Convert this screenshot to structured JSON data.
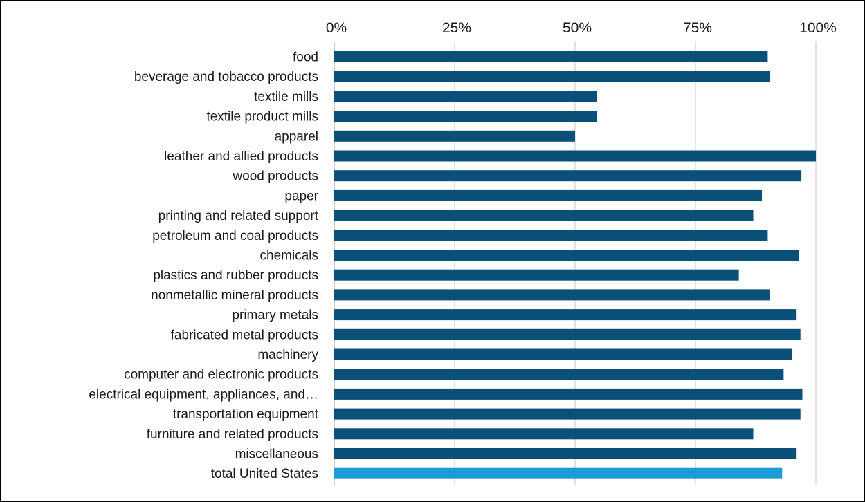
{
  "chart_data": {
    "type": "bar",
    "orientation": "horizontal",
    "title": "",
    "xlabel": "",
    "ylabel": "",
    "xlim": [
      0,
      100
    ],
    "x_ticks": [
      0,
      25,
      50,
      75,
      100
    ],
    "x_tick_labels": [
      "0%",
      "25%",
      "50%",
      "75%",
      "100%"
    ],
    "x_axis_position": "top",
    "grid": "vertical",
    "legend": "none",
    "categories": [
      "food",
      "beverage and tobacco products",
      "textile mills",
      "textile product mills",
      "apparel",
      "leather and allied products",
      "wood products",
      "paper",
      "printing and related support",
      "petroleum and coal products",
      "chemicals",
      "plastics and rubber products",
      "nonmetallic mineral products",
      "primary metals",
      "fabricated metal products",
      "machinery",
      "computer and electronic products",
      "electrical equipment, appliances, and…",
      "transportation equipment",
      "furniture and related products",
      "miscellaneous",
      "total United States"
    ],
    "values": [
      90,
      90.5,
      54.5,
      54.5,
      50,
      100,
      97,
      88.8,
      87,
      90,
      96.5,
      84,
      90.5,
      96,
      96.8,
      95,
      93.3,
      97.2,
      96.8,
      87,
      96,
      93
    ],
    "bar_colors": [
      "#0a5078",
      "#0a5078",
      "#0a5078",
      "#0a5078",
      "#0a5078",
      "#0a5078",
      "#0a5078",
      "#0a5078",
      "#0a5078",
      "#0a5078",
      "#0a5078",
      "#0a5078",
      "#0a5078",
      "#0a5078",
      "#0a5078",
      "#0a5078",
      "#0a5078",
      "#0a5078",
      "#0a5078",
      "#0a5078",
      "#0a5078",
      "#1e9bd7"
    ],
    "grid_color": "#d9d9d9",
    "axis_color": "#bfbfbf"
  }
}
